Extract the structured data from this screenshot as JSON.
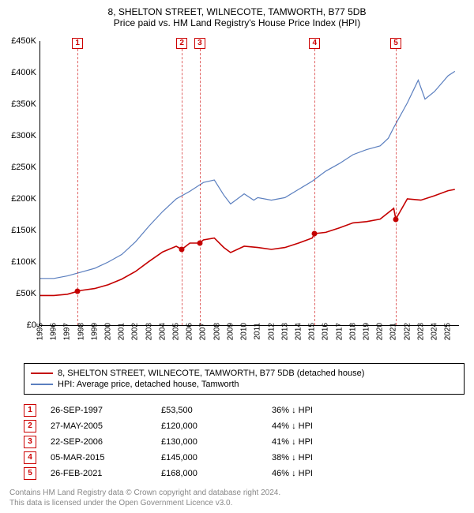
{
  "title_line1": "8, SHELTON STREET, WILNECOTE, TAMWORTH, B77 5DB",
  "title_line2": "Price paid vs. HM Land Registry's House Price Index (HPI)",
  "chart": {
    "type": "line",
    "x_min": 1995,
    "x_max": 2025.8,
    "y_min": 0,
    "y_max": 450000,
    "y_ticks": [
      0,
      50000,
      100000,
      150000,
      200000,
      250000,
      300000,
      350000,
      400000,
      450000
    ],
    "y_tick_labels": [
      "£0",
      "£50K",
      "£100K",
      "£150K",
      "£200K",
      "£250K",
      "£300K",
      "£350K",
      "£400K",
      "£450K"
    ],
    "x_ticks": [
      1995,
      1996,
      1997,
      1998,
      1999,
      2000,
      2001,
      2002,
      2003,
      2004,
      2005,
      2006,
      2007,
      2008,
      2009,
      2010,
      2011,
      2012,
      2013,
      2014,
      2015,
      2016,
      2017,
      2018,
      2019,
      2020,
      2021,
      2022,
      2023,
      2024,
      2025
    ],
    "background_color": "#ffffff",
    "series": [
      {
        "name": "hpi",
        "color": "#5b7fbf",
        "width": 1.2,
        "points": [
          [
            1995,
            74000
          ],
          [
            1996,
            74000
          ],
          [
            1997,
            78000
          ],
          [
            1998,
            84000
          ],
          [
            1999,
            90000
          ],
          [
            2000,
            100000
          ],
          [
            2001,
            112000
          ],
          [
            2002,
            132000
          ],
          [
            2003,
            157000
          ],
          [
            2004,
            180000
          ],
          [
            2005,
            200000
          ],
          [
            2006,
            212000
          ],
          [
            2007,
            226000
          ],
          [
            2007.8,
            230000
          ],
          [
            2008.5,
            206000
          ],
          [
            2009,
            192000
          ],
          [
            2010,
            208000
          ],
          [
            2010.7,
            198000
          ],
          [
            2011,
            202000
          ],
          [
            2012,
            198000
          ],
          [
            2013,
            202000
          ],
          [
            2014,
            215000
          ],
          [
            2015,
            228000
          ],
          [
            2016,
            244000
          ],
          [
            2017,
            256000
          ],
          [
            2018,
            270000
          ],
          [
            2019,
            278000
          ],
          [
            2020,
            284000
          ],
          [
            2020.6,
            296000
          ],
          [
            2021,
            313000
          ],
          [
            2022,
            352000
          ],
          [
            2022.8,
            388000
          ],
          [
            2023.3,
            358000
          ],
          [
            2024,
            370000
          ],
          [
            2025,
            395000
          ],
          [
            2025.5,
            402000
          ]
        ]
      },
      {
        "name": "paid",
        "color": "#c40000",
        "width": 1.6,
        "points": [
          [
            1995,
            47000
          ],
          [
            1996,
            47000
          ],
          [
            1997,
            49000
          ],
          [
            1997.74,
            53500
          ],
          [
            1998,
            55000
          ],
          [
            1999,
            58000
          ],
          [
            2000,
            64000
          ],
          [
            2001,
            73000
          ],
          [
            2002,
            85000
          ],
          [
            2003,
            101000
          ],
          [
            2004,
            116000
          ],
          [
            2005,
            125000
          ],
          [
            2005.41,
            120000
          ],
          [
            2006,
            130000
          ],
          [
            2006.73,
            130000
          ],
          [
            2007,
            135000
          ],
          [
            2007.8,
            138000
          ],
          [
            2008.5,
            123000
          ],
          [
            2009,
            115000
          ],
          [
            2010,
            125000
          ],
          [
            2011,
            123000
          ],
          [
            2012,
            120000
          ],
          [
            2013,
            123000
          ],
          [
            2014,
            130000
          ],
          [
            2015,
            138000
          ],
          [
            2015.18,
            145000
          ],
          [
            2016,
            147000
          ],
          [
            2017,
            154000
          ],
          [
            2018,
            162000
          ],
          [
            2019,
            164000
          ],
          [
            2020,
            168000
          ],
          [
            2021,
            185000
          ],
          [
            2021.15,
            168000
          ],
          [
            2022,
            200000
          ],
          [
            2023,
            198000
          ],
          [
            2024,
            205000
          ],
          [
            2025,
            213000
          ],
          [
            2025.5,
            215000
          ]
        ]
      }
    ],
    "sale_points": [
      {
        "n": 1,
        "x": 1997.74,
        "y": 53500
      },
      {
        "n": 2,
        "x": 2005.41,
        "y": 120000
      },
      {
        "n": 3,
        "x": 2006.73,
        "y": 130000
      },
      {
        "n": 4,
        "x": 2015.18,
        "y": 145000
      },
      {
        "n": 5,
        "x": 2021.15,
        "y": 168000
      }
    ],
    "point_color": "#c40000"
  },
  "legend": [
    {
      "color": "#c40000",
      "label": "8, SHELTON STREET, WILNECOTE, TAMWORTH, B77 5DB (detached house)"
    },
    {
      "color": "#5b7fbf",
      "label": "HPI: Average price, detached house, Tamworth"
    }
  ],
  "rows": [
    {
      "n": "1",
      "date": "26-SEP-1997",
      "price": "£53,500",
      "delta": "36% ↓ HPI"
    },
    {
      "n": "2",
      "date": "27-MAY-2005",
      "price": "£120,000",
      "delta": "44% ↓ HPI"
    },
    {
      "n": "3",
      "date": "22-SEP-2006",
      "price": "£130,000",
      "delta": "41% ↓ HPI"
    },
    {
      "n": "4",
      "date": "05-MAR-2015",
      "price": "£145,000",
      "delta": "38% ↓ HPI"
    },
    {
      "n": "5",
      "date": "26-FEB-2021",
      "price": "£168,000",
      "delta": "46% ↓ HPI"
    }
  ],
  "footer1": "Contains HM Land Registry data © Crown copyright and database right 2024.",
  "footer2": "This data is licensed under the Open Government Licence v3.0."
}
